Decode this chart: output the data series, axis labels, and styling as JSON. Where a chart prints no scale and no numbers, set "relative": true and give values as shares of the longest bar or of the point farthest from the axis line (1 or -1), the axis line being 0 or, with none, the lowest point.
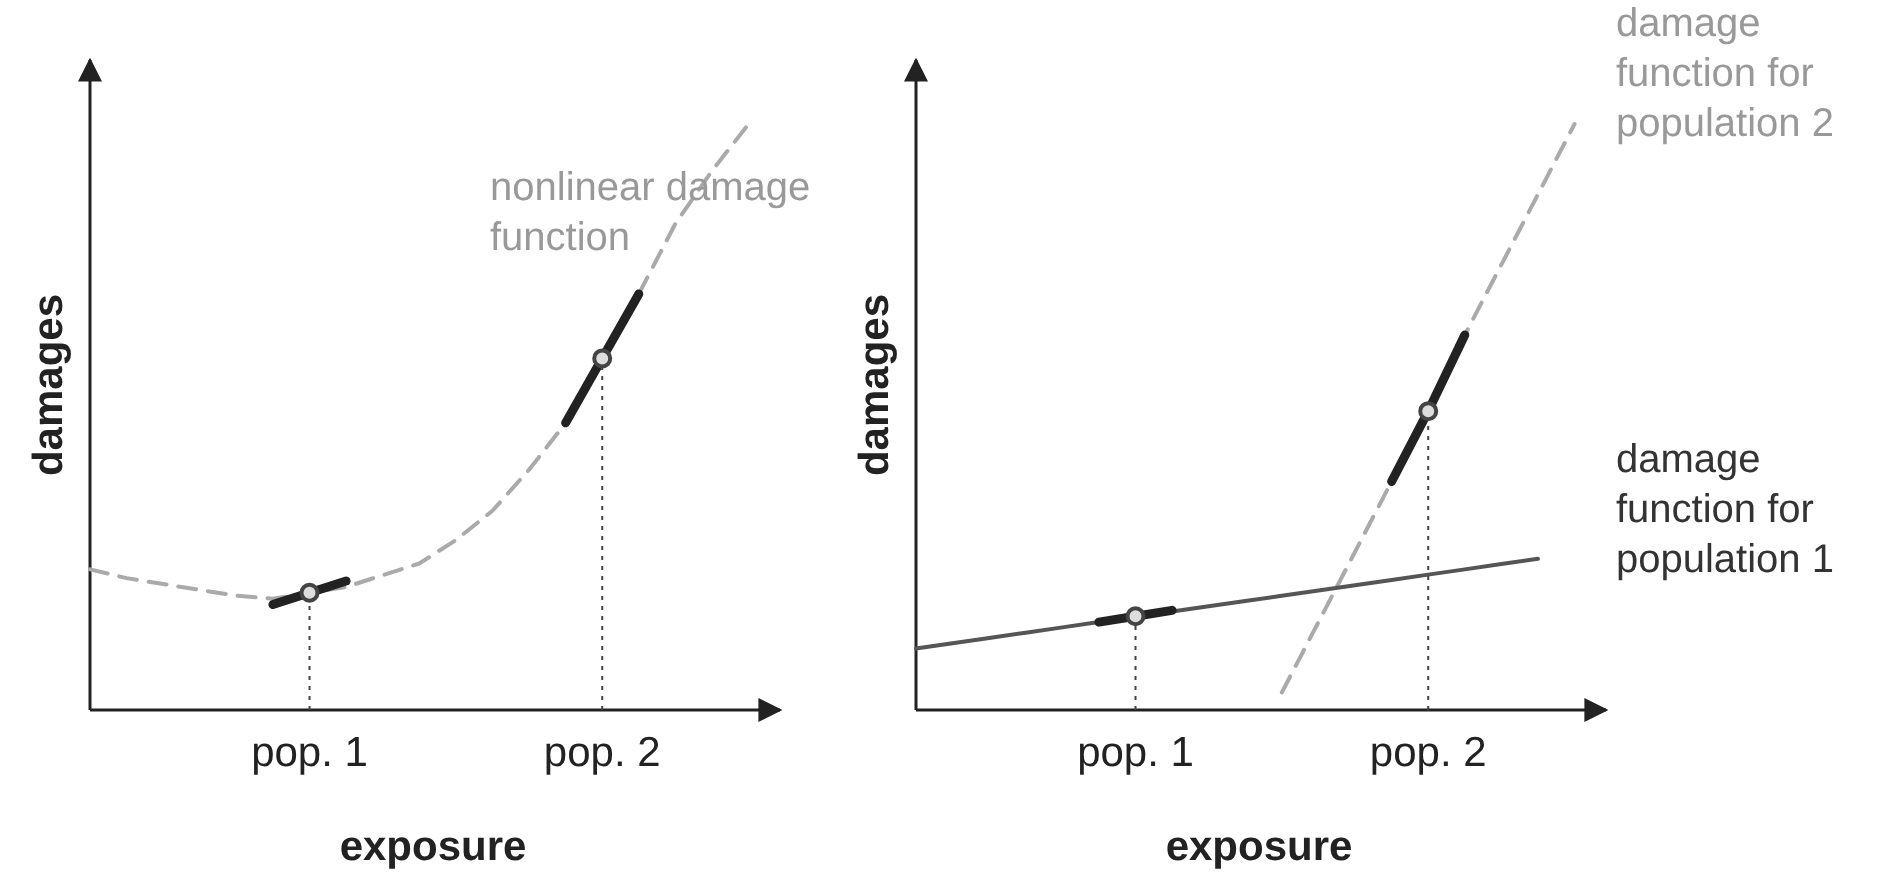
{
  "chart_data": [
    {
      "type": "line",
      "xlabel": "exposure",
      "ylabel": "damages",
      "relative": true,
      "tick_labels": "x",
      "grid": false,
      "categories": [
        null,
        null,
        null,
        null,
        null,
        null,
        "pop. 1",
        null,
        null,
        null,
        null,
        null,
        null,
        null,
        "pop. 2",
        null,
        null,
        null,
        null
      ],
      "annotations": [
        "nonlinear damage function"
      ],
      "series": [
        {
          "color": "#aaaaaa",
          "line_style": "dashed",
          "values": [
            0.24,
            0.225,
            0.215,
            0.205,
            0.195,
            0.19,
            0.2,
            0.21,
            0.23,
            0.25,
            0.29,
            0.34,
            0.41,
            0.49,
            0.6,
            0.71,
            0.83,
            0.92,
            1.0
          ]
        },
        {
          "color": "#222222",
          "line_style": "solid",
          "values": [
            null,
            null,
            null,
            null,
            null,
            0.18,
            0.2,
            0.22,
            null,
            null,
            null,
            null,
            null,
            null,
            null,
            null,
            null,
            null,
            null
          ]
        },
        {
          "color": "#222222",
          "line_style": "solid",
          "values": [
            null,
            null,
            null,
            null,
            null,
            null,
            null,
            null,
            null,
            null,
            null,
            null,
            null,
            0.49,
            0.6,
            0.71,
            null,
            null,
            null
          ]
        },
        {
          "type": "lollipop",
          "color": "#444444",
          "line_style": "dotted",
          "marker": "circle",
          "values": [
            null,
            null,
            null,
            null,
            null,
            null,
            0.2,
            null,
            null,
            null,
            null,
            null,
            null,
            null,
            0.6,
            null,
            null,
            null,
            null
          ]
        }
      ]
    },
    {
      "type": "line",
      "xlabel": "exposure",
      "ylabel": "damages",
      "relative": true,
      "tick_labels": "x",
      "grid": false,
      "categories": [
        null,
        null,
        null,
        null,
        null,
        null,
        "pop. 1",
        null,
        null,
        null,
        null,
        null,
        null,
        null,
        "pop. 2",
        null,
        null,
        null,
        null
      ],
      "annotations": [
        "damage function for population 2",
        "damage function for population 1"
      ],
      "series": [
        {
          "color": "#aaaaaa",
          "line_style": "dashed",
          "values": [
            null,
            null,
            null,
            null,
            null,
            null,
            null,
            null,
            null,
            null,
            0.03,
            0.15,
            0.27,
            0.39,
            0.51,
            0.64,
            0.76,
            0.88,
            1.0
          ]
        },
        {
          "color": "#555555",
          "line_style": "solid",
          "values": [
            0.105,
            0.114,
            0.123,
            0.132,
            0.141,
            0.15,
            0.159,
            0.168,
            0.177,
            0.186,
            0.195,
            0.204,
            0.213,
            0.222,
            0.231,
            0.24,
            0.249,
            0.258,
            null
          ]
        },
        {
          "color": "#222222",
          "line_style": "solid",
          "values": [
            null,
            null,
            null,
            null,
            null,
            0.15,
            0.16,
            0.17,
            null,
            null,
            null,
            null,
            null,
            null,
            null,
            null,
            null,
            null,
            null
          ]
        },
        {
          "color": "#222222",
          "line_style": "solid",
          "values": [
            null,
            null,
            null,
            null,
            null,
            null,
            null,
            null,
            null,
            null,
            null,
            null,
            null,
            0.39,
            0.51,
            0.64,
            null,
            null,
            null
          ]
        },
        {
          "type": "lollipop",
          "color": "#444444",
          "line_style": "dotted",
          "marker": "circle",
          "values": [
            null,
            null,
            null,
            null,
            null,
            null,
            0.16,
            null,
            null,
            null,
            null,
            null,
            null,
            null,
            0.51,
            null,
            null,
            null,
            null
          ]
        }
      ]
    }
  ]
}
